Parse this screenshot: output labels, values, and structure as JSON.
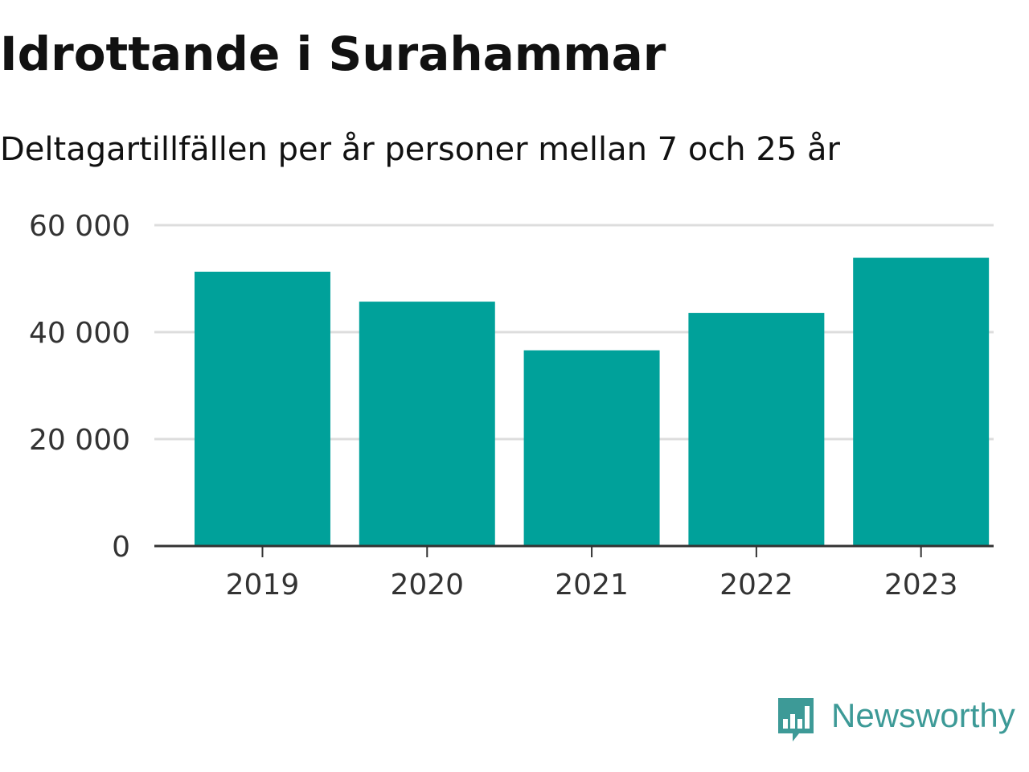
{
  "chart_data": {
    "type": "bar",
    "title": "Idrottande i Surahammar",
    "subtitle": "Deltagartillfällen per år personer mellan 7 och 25 år",
    "categories": [
      "2019",
      "2020",
      "2021",
      "2022",
      "2023"
    ],
    "values": [
      51300,
      45700,
      36600,
      43600,
      53900
    ],
    "ylim": [
      0,
      60000
    ],
    "yticks": [
      0,
      20000,
      40000,
      60000
    ],
    "ytick_labels": [
      "0",
      "20 000",
      "40 000",
      "60 000"
    ],
    "grid": true,
    "bar_color": "#00a19a",
    "xlabel": "",
    "ylabel": ""
  },
  "branding": {
    "name": "Newsworthy",
    "color": "#3d9a97",
    "icon": "newsworthy-logo-icon"
  }
}
